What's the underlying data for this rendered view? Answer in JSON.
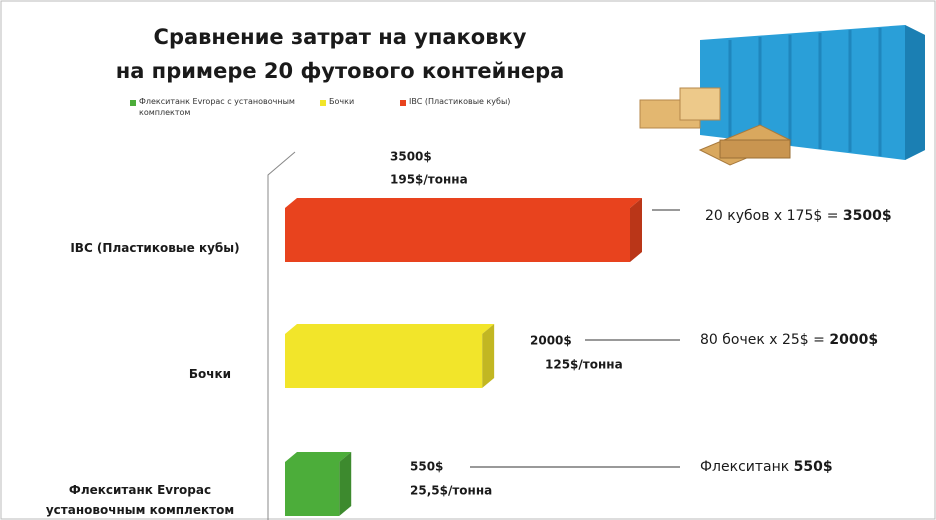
{
  "chart_data": {
    "type": "bar3d",
    "title": "Сравнение затрат на упаковку",
    "subtitle": "на примере 20 футового контейнера",
    "categories": [
      "IBC (Пластиковые кубы)",
      "Бочки",
      "Флекситанк Evropac установочным комплектом"
    ],
    "values": [
      3500,
      2000,
      550
    ],
    "value_labels": [
      "3500$",
      "2000$",
      "550$"
    ],
    "per_ton_labels": [
      "195$/тонна",
      "125$/тонна",
      "25,5$/тонна"
    ],
    "colors": [
      "#e8431e",
      "#f2e52a",
      "#4cad3a"
    ],
    "legend": [
      {
        "name": "Флекситанк Evropac с установочным комплектом",
        "color": "#4cad3a"
      },
      {
        "name": "Бочки",
        "color": "#f2e52a"
      },
      {
        "name": "IBC (Пластиковые кубы)",
        "color": "#e8431e"
      }
    ],
    "annotations": [
      {
        "text": "20 кубов х 175$ =",
        "bold": "3500$"
      },
      {
        "text": "80 бочек х 25$ =",
        "bold": "2000$"
      },
      {
        "text": "Флекситанк",
        "bold": "550$"
      }
    ]
  }
}
